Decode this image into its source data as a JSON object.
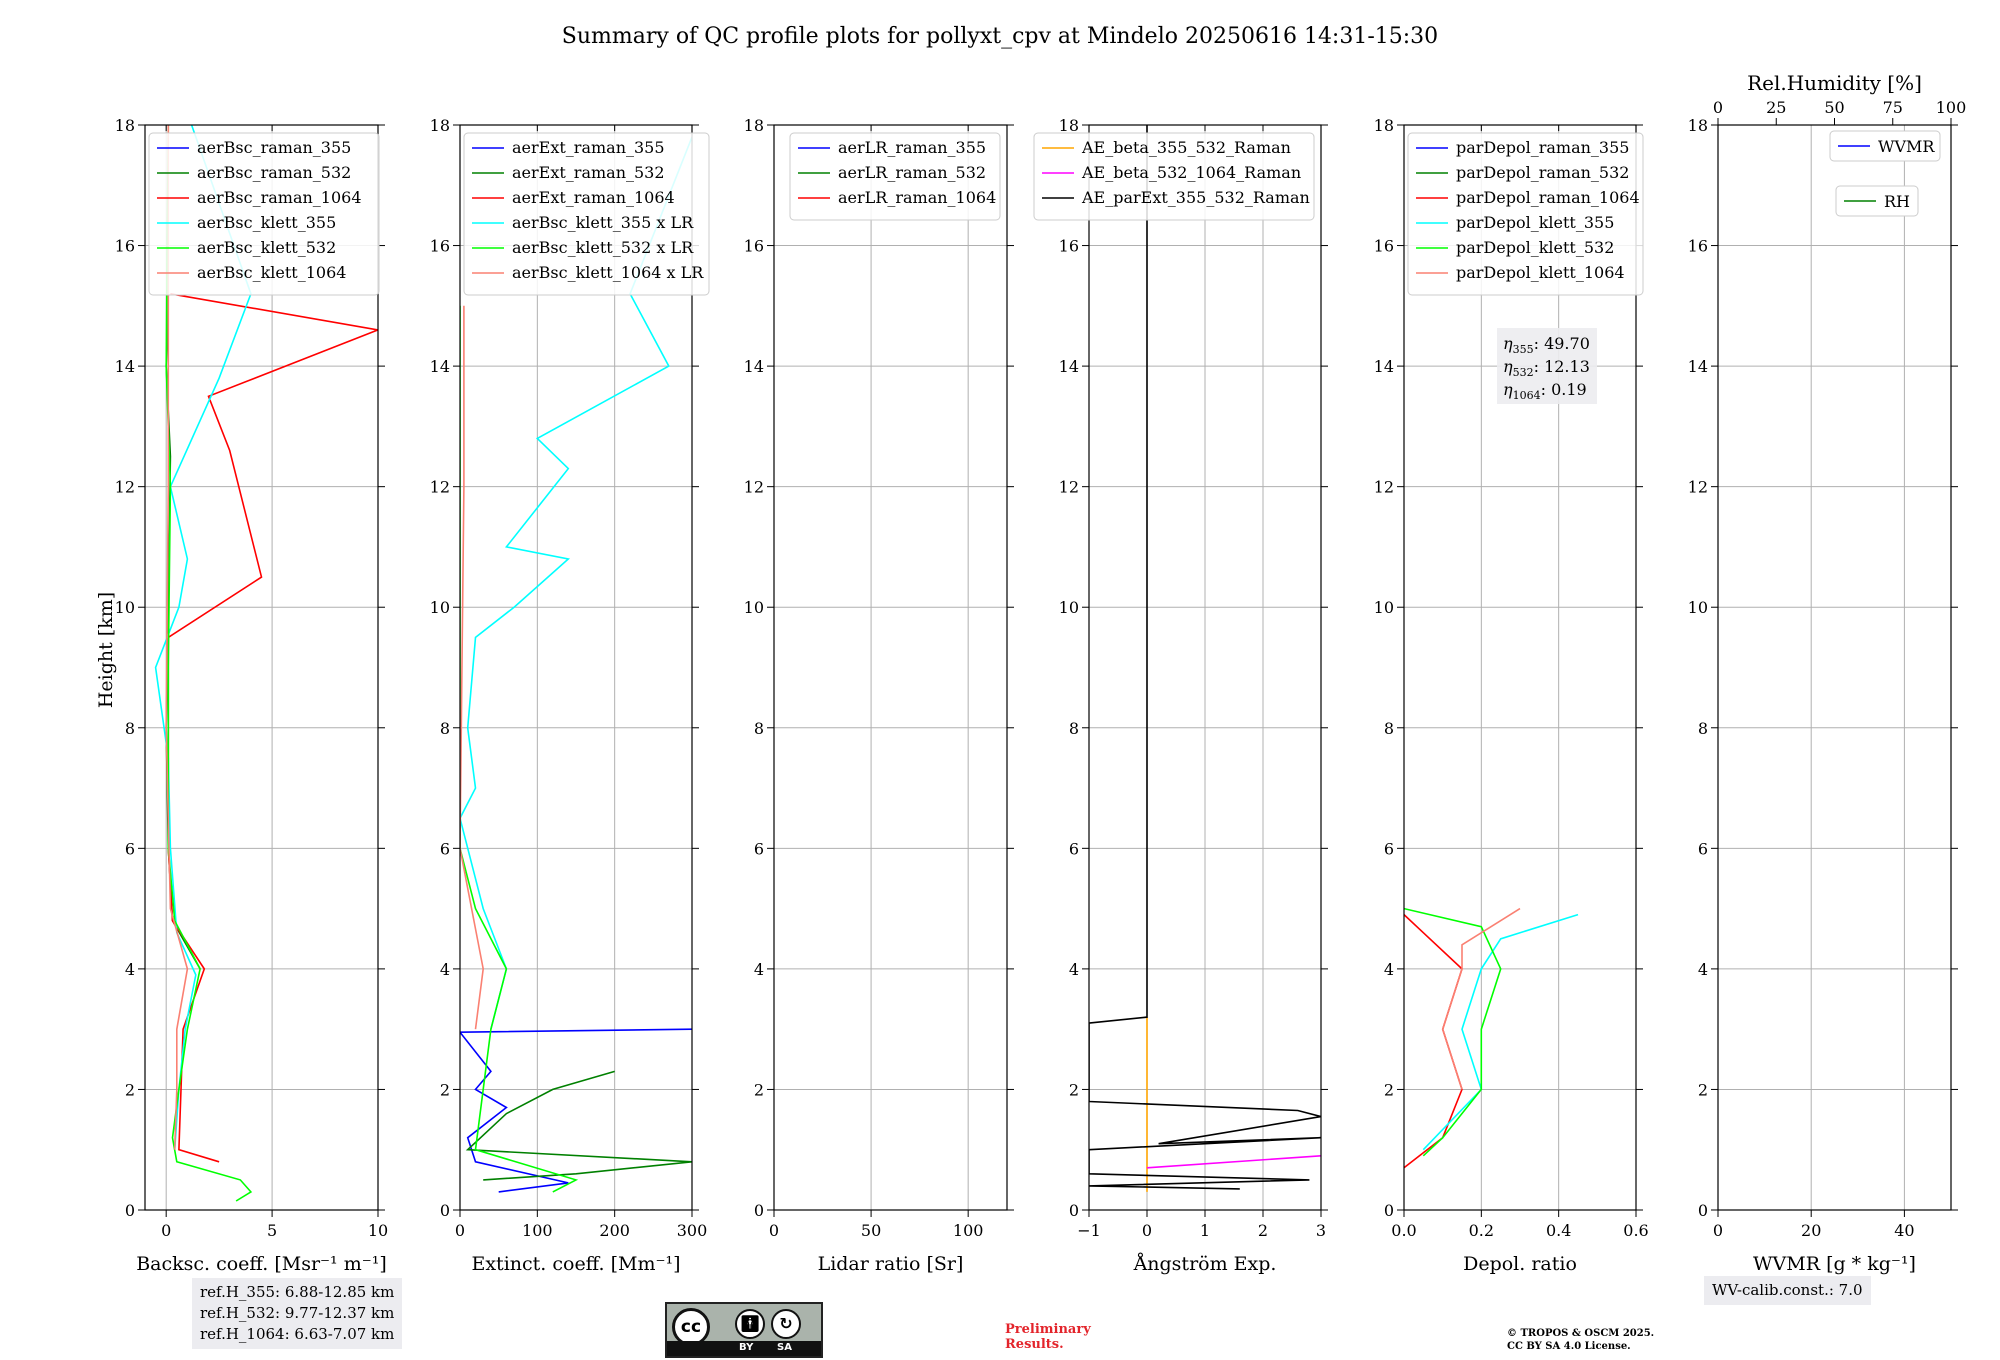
{
  "title": "Summary of QC profile plots for pollyxt_cpv at Mindelo 20250616 14:31-15:30",
  "panels": {
    "bsc": {
      "xlabel": "Backsc. coeff. [Msr⁻¹ m⁻¹]",
      "ylabel": "Height [km]",
      "xticks": [
        "0",
        "5",
        "10"
      ],
      "legend": [
        "aerBsc_raman_355",
        "aerBsc_raman_532",
        "aerBsc_raman_1064",
        "aerBsc_klett_355",
        "aerBsc_klett_532",
        "aerBsc_klett_1064"
      ]
    },
    "ext": {
      "xlabel": "Extinct. coeff. [Mm⁻¹]",
      "xticks": [
        "0",
        "100",
        "200",
        "300"
      ],
      "legend": [
        "aerExt_raman_355",
        "aerExt_raman_532",
        "aerExt_raman_1064",
        "aerBsc_klett_355 x LR",
        "aerBsc_klett_532 x LR",
        "aerBsc_klett_1064 x LR"
      ]
    },
    "lr": {
      "xlabel": "Lidar ratio [Sr]",
      "xticks": [
        "0",
        "50",
        "100"
      ],
      "legend": [
        "aerLR_raman_355",
        "aerLR_raman_532",
        "aerLR_raman_1064"
      ]
    },
    "ae": {
      "xlabel": "Ångström Exp.",
      "xticks": [
        "−1",
        "0",
        "1",
        "2",
        "3"
      ],
      "legend": [
        "AE_beta_355_532_Raman",
        "AE_beta_532_1064_Raman",
        "AE_parExt_355_532_Raman"
      ]
    },
    "dep": {
      "xlabel": "Depol. ratio",
      "xticks": [
        "0.0",
        "0.2",
        "0.4",
        "0.6"
      ],
      "legend": [
        "parDepol_raman_355",
        "parDepol_raman_532",
        "parDepol_raman_1064",
        "parDepol_klett_355",
        "parDepol_klett_532",
        "parDepol_klett_1064"
      ],
      "eta": [
        {
          "sub": "355",
          "value": "49.70"
        },
        {
          "sub": "532",
          "value": "12.13"
        },
        {
          "sub": "1064",
          "value": "0.19"
        }
      ]
    },
    "wv": {
      "xlabel": "WVMR [g * kg⁻¹]",
      "xticks": [
        "0",
        "20",
        "40"
      ],
      "top_label": "Rel.Humidity [%]",
      "top_ticks": [
        "0",
        "25",
        "50",
        "75",
        "100"
      ],
      "legend_wvmr": "WVMR",
      "legend_rh": "RH",
      "calib": "WV-calib.const.: 7.0"
    }
  },
  "yticks": [
    "0",
    "2",
    "4",
    "6",
    "8",
    "10",
    "12",
    "14",
    "16",
    "18"
  ],
  "ref_heights": [
    "ref.H_355: 6.88-12.85 km",
    "ref.H_532: 9.77-12.37 km",
    "ref.H_1064: 6.63-7.07 km"
  ],
  "license_badge": {
    "by": "BY",
    "sa": "SA"
  },
  "preliminary": [
    "Preliminary",
    "Results."
  ],
  "copyright": [
    "© TROPOS & OSCM 2025.",
    "CC BY SA 4.0 License."
  ],
  "colors": {
    "blue": "#0000ff",
    "green": "#008000",
    "red": "#ff0000",
    "cyan": "#00ffff",
    "lime": "#00ff00",
    "salmon": "#fa8072",
    "orange": "#ffa500",
    "magenta": "#ff00ff",
    "black": "#000000",
    "grid": "#b0b0b0"
  },
  "chart_data": [
    {
      "type": "line",
      "panel": "backscatter",
      "xlabel": "Backsc. coeff. [Msr⁻¹ m⁻¹]",
      "ylabel": "Height [km]",
      "xlim": [
        -1,
        10
      ],
      "ylim": [
        0,
        18
      ],
      "series": [
        {
          "name": "aerBsc_raman_355",
          "points": []
        },
        {
          "name": "aerBsc_raman_532",
          "points": [
            [
              0.1,
              15.2
            ],
            [
              0.0,
              14.0
            ],
            [
              0.2,
              12.5
            ],
            [
              0.1,
              10.0
            ],
            [
              0.0,
              8.0
            ],
            [
              0.1,
              6.0
            ],
            [
              0.3,
              4.8
            ],
            [
              1.6,
              4.0
            ]
          ]
        },
        {
          "name": "aerBsc_raman_1064",
          "points": [
            [
              0.2,
              15.2
            ],
            [
              10,
              14.6
            ],
            [
              2,
              13.5
            ],
            [
              3,
              12.6
            ],
            [
              4.5,
              10.5
            ],
            [
              0.1,
              9.5
            ],
            [
              0.1,
              6.0
            ],
            [
              0.3,
              4.8
            ],
            [
              1.8,
              4.0
            ],
            [
              0.8,
              3.0
            ],
            [
              0.7,
              2.0
            ],
            [
              0.6,
              1.0
            ],
            [
              2.5,
              0.8
            ]
          ]
        },
        {
          "name": "aerBsc_klett_355",
          "points": [
            [
              1.2,
              18
            ],
            [
              4,
              15.2
            ],
            [
              2.5,
              13.8
            ],
            [
              0.2,
              12.0
            ],
            [
              1,
              10.8
            ],
            [
              0.6,
              10.0
            ],
            [
              -0.5,
              9.0
            ],
            [
              0.1,
              7.5
            ],
            [
              0.2,
              6.0
            ],
            [
              0.5,
              4.6
            ],
            [
              1.4,
              3.9
            ],
            [
              0.9,
              3.0
            ],
            [
              0.6,
              2.0
            ],
            [
              0.4,
              1.0
            ]
          ]
        },
        {
          "name": "aerBsc_klett_532",
          "points": [
            [
              0.1,
              18
            ],
            [
              0.0,
              14.0
            ],
            [
              0.2,
              12.0
            ],
            [
              0.1,
              9.0
            ],
            [
              0.1,
              6.0
            ],
            [
              0.4,
              4.8
            ],
            [
              1.6,
              4.0
            ],
            [
              1.0,
              3.0
            ],
            [
              0.6,
              2.0
            ],
            [
              0.3,
              1.2
            ],
            [
              0.5,
              0.8
            ],
            [
              3.5,
              0.5
            ],
            [
              4,
              0.3
            ],
            [
              3.3,
              0.15
            ]
          ]
        },
        {
          "name": "aerBsc_klett_1064",
          "points": [
            [
              0.1,
              18
            ],
            [
              0.1,
              12.0
            ],
            [
              0.0,
              8.0
            ],
            [
              0.2,
              5.0
            ],
            [
              1.0,
              4.0
            ],
            [
              0.5,
              3.0
            ],
            [
              0.5,
              2.0
            ],
            [
              0.4,
              1.0
            ]
          ]
        }
      ]
    },
    {
      "type": "line",
      "panel": "extinction",
      "xlabel": "Extinct. coeff. [Mm⁻¹]",
      "xlim": [
        0,
        300
      ],
      "ylim": [
        0,
        18
      ],
      "series": [
        {
          "name": "aerExt_raman_355",
          "points": [
            [
              300,
              3.0
            ],
            [
              0,
              2.95
            ],
            [
              40,
              2.3
            ],
            [
              20,
              2.0
            ],
            [
              60,
              1.7
            ],
            [
              10,
              1.2
            ],
            [
              20,
              0.8
            ],
            [
              140,
              0.45
            ],
            [
              50,
              0.3
            ]
          ]
        },
        {
          "name": "aerExt_raman_532",
          "points": [
            [
              200,
              2.3
            ],
            [
              120,
              2.0
            ],
            [
              60,
              1.6
            ],
            [
              10,
              1.0
            ],
            [
              300,
              0.8
            ],
            [
              150,
              0.6
            ],
            [
              30,
              0.5
            ]
          ]
        },
        {
          "name": "aerExt_raman_1064",
          "points": []
        },
        {
          "name": "aerBsc_klett_355 x LR",
          "points": [
            [
              300,
              17.8
            ],
            [
              220,
              15.2
            ],
            [
              270,
              14.0
            ],
            [
              100,
              12.8
            ],
            [
              140,
              12.3
            ],
            [
              60,
              11.0
            ],
            [
              140,
              10.8
            ],
            [
              70,
              10.0
            ],
            [
              20,
              9.5
            ],
            [
              10,
              8.0
            ],
            [
              20,
              7.0
            ],
            [
              0,
              6.5
            ],
            [
              30,
              5.0
            ],
            [
              60,
              4.0
            ],
            [
              40,
              3.0
            ]
          ]
        },
        {
          "name": "aerBsc_klett_532 x LR",
          "points": [
            [
              0,
              15.0
            ],
            [
              0,
              10.0
            ],
            [
              0,
              6.0
            ],
            [
              20,
              5.0
            ],
            [
              60,
              4.0
            ],
            [
              40,
              3.0
            ],
            [
              30,
              2.0
            ],
            [
              20,
              1.0
            ],
            [
              150,
              0.5
            ],
            [
              120,
              0.3
            ]
          ]
        },
        {
          "name": "aerBsc_klett_1064 x LR",
          "points": [
            [
              5,
              15.0
            ],
            [
              5,
              12.0
            ],
            [
              0,
              6.0
            ],
            [
              15,
              5.0
            ],
            [
              30,
              4.0
            ],
            [
              20,
              3.0
            ]
          ]
        }
      ]
    },
    {
      "type": "line",
      "panel": "lidar_ratio",
      "xlabel": "Lidar ratio [Sr]",
      "xlim": [
        0,
        120
      ],
      "ylim": [
        0,
        18
      ],
      "series": [
        {
          "name": "aerLR_raman_355",
          "points": []
        },
        {
          "name": "aerLR_raman_532",
          "points": []
        },
        {
          "name": "aerLR_raman_1064",
          "points": []
        }
      ]
    },
    {
      "type": "line",
      "panel": "angstrom",
      "xlabel": "Ångström Exp.",
      "xlim": [
        -1,
        3
      ],
      "ylim": [
        0,
        18
      ],
      "series": [
        {
          "name": "AE_beta_355_532_Raman",
          "points": [
            [
              0,
              3.2
            ],
            [
              0,
              0.3
            ]
          ]
        },
        {
          "name": "AE_beta_532_1064_Raman",
          "points": [
            [
              0,
              0.7
            ],
            [
              3,
              0.9
            ]
          ]
        },
        {
          "name": "AE_parExt_355_532_Raman",
          "points": [
            [
              0,
              18
            ],
            [
              0,
              3.2
            ],
            [
              -1,
              3.1
            ],
            [
              -1,
              1.8
            ],
            [
              2.6,
              1.65
            ],
            [
              3,
              1.55
            ],
            [
              0.2,
              1.1
            ],
            [
              3,
              1.2
            ],
            [
              -1,
              1.0
            ],
            [
              -1,
              0.6
            ],
            [
              2.8,
              0.5
            ],
            [
              -1,
              0.4
            ],
            [
              1.6,
              0.35
            ]
          ]
        }
      ]
    },
    {
      "type": "line",
      "panel": "depolarization",
      "xlabel": "Depol. ratio",
      "xlim": [
        0,
        0.6
      ],
      "ylim": [
        0,
        18
      ],
      "series": [
        {
          "name": "parDepol_raman_355",
          "points": []
        },
        {
          "name": "parDepol_raman_532",
          "points": []
        },
        {
          "name": "parDepol_raman_1064",
          "points": [
            [
              0.0,
              4.9
            ],
            [
              0.05,
              4.6
            ],
            [
              0.15,
              4.0
            ],
            [
              0.1,
              3.0
            ],
            [
              0.15,
              2.0
            ],
            [
              0.1,
              1.2
            ],
            [
              0.0,
              0.7
            ]
          ]
        },
        {
          "name": "parDepol_klett_355",
          "points": [
            [
              0.45,
              4.9
            ],
            [
              0.25,
              4.5
            ],
            [
              0.2,
              4.0
            ],
            [
              0.15,
              3.0
            ],
            [
              0.2,
              2.0
            ],
            [
              0.05,
              1.0
            ]
          ]
        },
        {
          "name": "parDepol_klett_532",
          "points": [
            [
              0.0,
              5.0
            ],
            [
              0.2,
              4.7
            ],
            [
              0.25,
              4.0
            ],
            [
              0.2,
              3.0
            ],
            [
              0.2,
              2.0
            ],
            [
              0.1,
              1.2
            ],
            [
              0.05,
              0.9
            ]
          ]
        },
        {
          "name": "parDepol_klett_1064",
          "points": [
            [
              0.3,
              5.0
            ],
            [
              0.15,
              4.4
            ],
            [
              0.15,
              4.0
            ],
            [
              0.1,
              3.0
            ],
            [
              0.15,
              2.0
            ]
          ]
        }
      ]
    },
    {
      "type": "line",
      "panel": "water_vapor",
      "xlabel": "WVMR [g * kg⁻¹]",
      "xlim": [
        0,
        50
      ],
      "ylim": [
        0,
        18
      ],
      "top_axis": {
        "label": "Rel.Humidity [%]",
        "xlim": [
          0,
          100
        ]
      },
      "series": [
        {
          "name": "WVMR",
          "points": []
        },
        {
          "name": "RH",
          "points": []
        }
      ]
    }
  ]
}
